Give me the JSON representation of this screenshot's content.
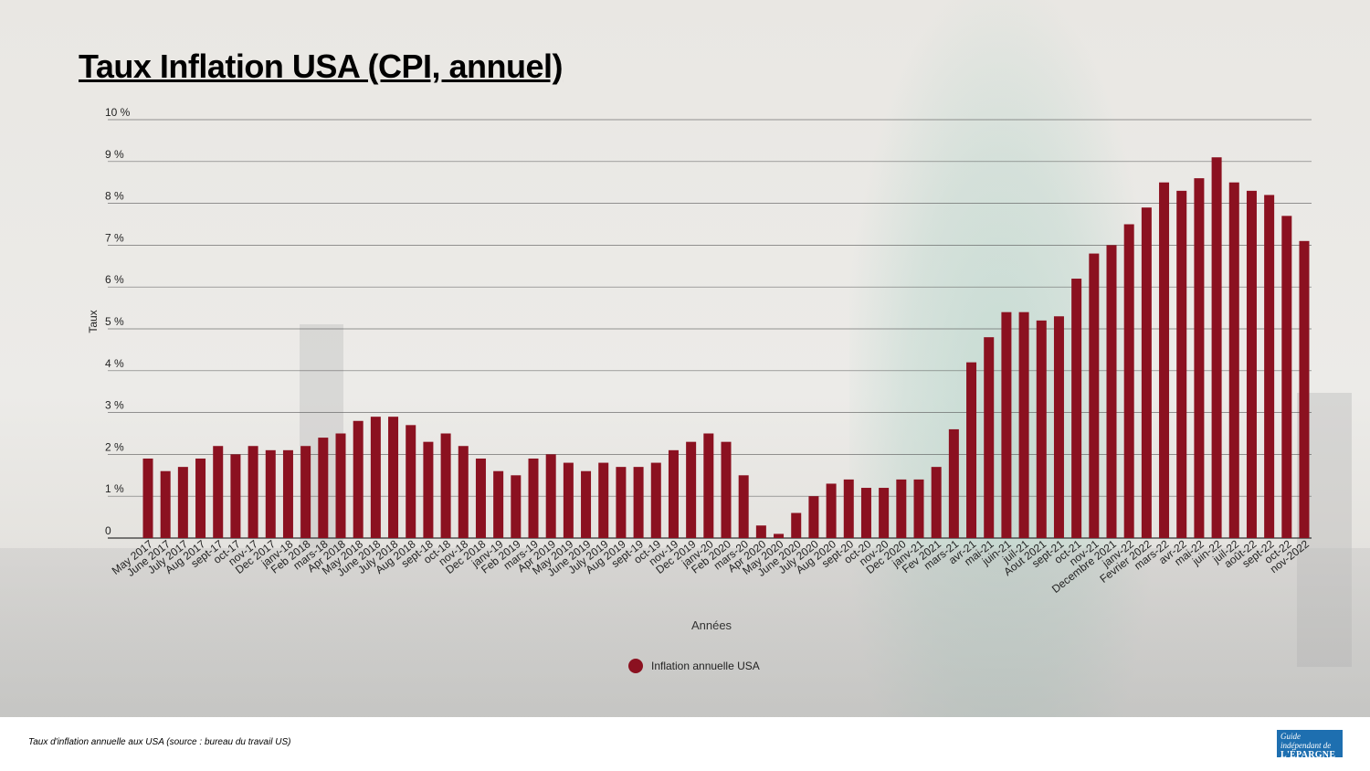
{
  "title": "Taux Inflation USA (CPI, annuel)",
  "caption": "Taux d'inflation annuelle aux USA (source : bureau du travail US)",
  "logo": {
    "line1": "Guide indépendant de",
    "line2": "L'ÉPARGNE"
  },
  "colors": {
    "bar": "#8b1120",
    "grid": "#555555"
  },
  "chart_data": {
    "type": "bar",
    "title": "Taux Inflation USA (CPI, annuel)",
    "xlabel": "Années",
    "ylabel": "Taux",
    "ylim": [
      0,
      10
    ],
    "yticks": [
      {
        "value": 0,
        "label": "0"
      },
      {
        "value": 1,
        "label": "1 %"
      },
      {
        "value": 2,
        "label": "2 %"
      },
      {
        "value": 3,
        "label": "3 %"
      },
      {
        "value": 4,
        "label": "4 %"
      },
      {
        "value": 5,
        "label": "5 %"
      },
      {
        "value": 6,
        "label": "6 %"
      },
      {
        "value": 7,
        "label": "7 %"
      },
      {
        "value": 8,
        "label": "8 %"
      },
      {
        "value": 9,
        "label": "9 %"
      },
      {
        "value": 10,
        "label": "10 %"
      }
    ],
    "grid": true,
    "legend": "bottom-center",
    "categories": [
      "May 2017",
      "June 2017",
      "July 2017",
      "Aug 2017",
      "sept-17",
      "oct-17",
      "nov-17",
      "Dec 2017",
      "janv-18",
      "Feb 2018",
      "mars-18",
      "Apr 2018",
      "May 2018",
      "June 2018",
      "July 2018",
      "Aug 2018",
      "sept-18",
      "oct-18",
      "nov-18",
      "Dec 2018",
      "janv-19",
      "Feb 2019",
      "mars-19",
      "Apr 2019",
      "May 2019",
      "June 2019",
      "July 2019",
      "Aug 2019",
      "sept-19",
      "oct-19",
      "nov-19",
      "Dec 2019",
      "janv-20",
      "Feb 2020",
      "mars-20",
      "Apr 2020",
      "May 2020",
      "June 2020",
      "July 2020",
      "Aug 2020",
      "sept-20",
      "oct-20",
      "nov-20",
      "Dec 2020",
      "janv-21",
      "Fev 2021",
      "mars-21",
      "avr-21",
      "mai-21",
      "juin-21",
      "juil-21",
      "Aout 2021",
      "sept-21",
      "oct-21",
      "nov-21",
      "Decembre 2021",
      "janv-22",
      "Fevrier 2022",
      "mars-22",
      "avr-22",
      "mai-22",
      "juin-22",
      "juil-22",
      "août-22",
      "sept-22",
      "oct-22",
      "nov-2022"
    ],
    "series": [
      {
        "name": "Inflation annuelle USA",
        "values": [
          1.9,
          1.6,
          1.7,
          1.9,
          2.2,
          2.0,
          2.2,
          2.1,
          2.1,
          2.2,
          2.4,
          2.5,
          2.8,
          2.9,
          2.9,
          2.7,
          2.3,
          2.5,
          2.2,
          1.9,
          1.6,
          1.5,
          1.9,
          2.0,
          1.8,
          1.6,
          1.8,
          1.7,
          1.7,
          1.8,
          2.1,
          2.3,
          2.5,
          2.3,
          1.5,
          0.3,
          0.1,
          0.6,
          1.0,
          1.3,
          1.4,
          1.2,
          1.2,
          1.4,
          1.4,
          1.7,
          2.6,
          4.2,
          4.8,
          5.4,
          5.4,
          5.2,
          5.3,
          6.2,
          6.8,
          7.0,
          7.5,
          7.9,
          8.5,
          8.3,
          8.6,
          9.1,
          8.5,
          8.3,
          8.2,
          7.7,
          7.1
        ]
      }
    ]
  }
}
